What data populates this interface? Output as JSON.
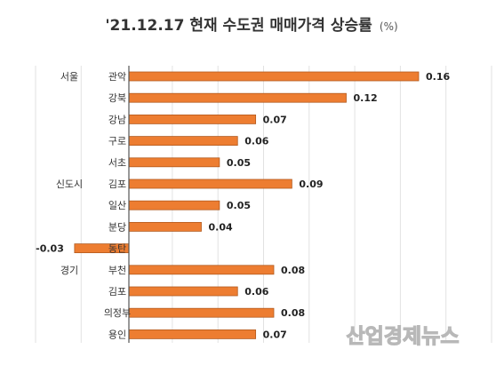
{
  "chart_data": {
    "type": "bar",
    "orientation": "horizontal",
    "title": "'21.12.17 현재 수도권 매매가격 상승률",
    "title_unit": "(%)",
    "groups": [
      {
        "label": "서울",
        "start": 0
      },
      {
        "label": "신도시",
        "start": 5
      },
      {
        "label": "경기",
        "start": 9
      }
    ],
    "categories": [
      "관악",
      "강북",
      "강남",
      "구로",
      "서초",
      "김포",
      "일산",
      "분당",
      "동탄",
      "부천",
      "김포",
      "의정부",
      "용인"
    ],
    "values": [
      0.16,
      0.12,
      0.07,
      0.06,
      0.05,
      0.09,
      0.05,
      0.04,
      -0.03,
      0.08,
      0.06,
      0.08,
      0.07
    ],
    "data_labels": [
      "0.16",
      "0.12",
      "0.07",
      "0.06",
      "0.05",
      "0.09",
      "0.05",
      "0.04",
      "-0.03",
      "0.08",
      "0.06",
      "0.08",
      "0.07"
    ],
    "xlim": [
      -0.03,
      0.2
    ],
    "grid": true,
    "colors": {
      "bar": "#ED7D31",
      "bar_border": "#B25A1E"
    }
  },
  "watermark": "산업경제뉴스"
}
